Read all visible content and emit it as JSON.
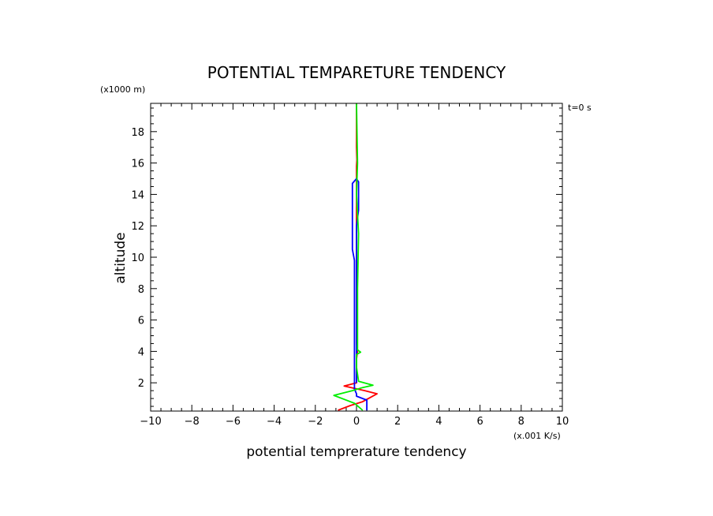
{
  "chart_data": {
    "type": "line",
    "title": "POTENTIAL TEMPARETURE TENDENCY",
    "xlabel": "potential temprerature tendency",
    "ylabel": "altitude",
    "x_unit": "(x.001 K/s)",
    "y_unit": "(x1000 m)",
    "time_label": "t=0 s",
    "xlim": [
      -10,
      10
    ],
    "ylim": [
      0.2,
      19.8
    ],
    "x_ticks": [
      "-10",
      "-8",
      "-6",
      "-4",
      "-2",
      "0",
      "2",
      "4",
      "6",
      "8",
      "10"
    ],
    "y_ticks": [
      "2",
      "4",
      "6",
      "8",
      "10",
      "12",
      "14",
      "16",
      "18"
    ],
    "grid": false,
    "series": [
      {
        "color": "#ff0000",
        "points": [
          [
            -0.9,
            0.25
          ],
          [
            -0.3,
            0.55
          ],
          [
            0.3,
            0.8
          ],
          [
            1.0,
            1.3
          ],
          [
            0.4,
            1.5
          ],
          [
            -0.6,
            1.8
          ],
          [
            0.0,
            2.0
          ],
          [
            0.0,
            3.5
          ],
          [
            0.05,
            4.0
          ],
          [
            0.0,
            4.5
          ],
          [
            0.0,
            15.8
          ],
          [
            0.02,
            16.2
          ],
          [
            0.0,
            17.0
          ],
          [
            0.0,
            19.8
          ]
        ]
      },
      {
        "color": "#0000ff",
        "points": [
          [
            0.5,
            0.25
          ],
          [
            0.5,
            0.9
          ],
          [
            0.0,
            1.15
          ],
          [
            0.0,
            1.3
          ],
          [
            -0.1,
            1.6
          ],
          [
            -0.1,
            9.8
          ],
          [
            -0.2,
            10.5
          ],
          [
            -0.2,
            14.7
          ],
          [
            0.0,
            15.0
          ],
          [
            0.1,
            14.8
          ],
          [
            0.1,
            13.0
          ],
          [
            0.0,
            12.0
          ],
          [
            0.0,
            4.0
          ],
          [
            0.0,
            2.0
          ]
        ]
      },
      {
        "color": "#00ee00",
        "points": [
          [
            0.3,
            0.25
          ],
          [
            -0.1,
            0.7
          ],
          [
            -1.1,
            1.2
          ],
          [
            -0.2,
            1.5
          ],
          [
            0.3,
            1.7
          ],
          [
            0.8,
            1.85
          ],
          [
            0.1,
            2.1
          ],
          [
            0.0,
            3.0
          ],
          [
            0.0,
            3.8
          ],
          [
            0.2,
            3.95
          ],
          [
            0.05,
            4.1
          ],
          [
            0.05,
            8.0
          ],
          [
            0.1,
            11.5
          ],
          [
            0.0,
            14.0
          ],
          [
            0.05,
            16.0
          ],
          [
            0.0,
            19.8
          ]
        ]
      }
    ]
  }
}
